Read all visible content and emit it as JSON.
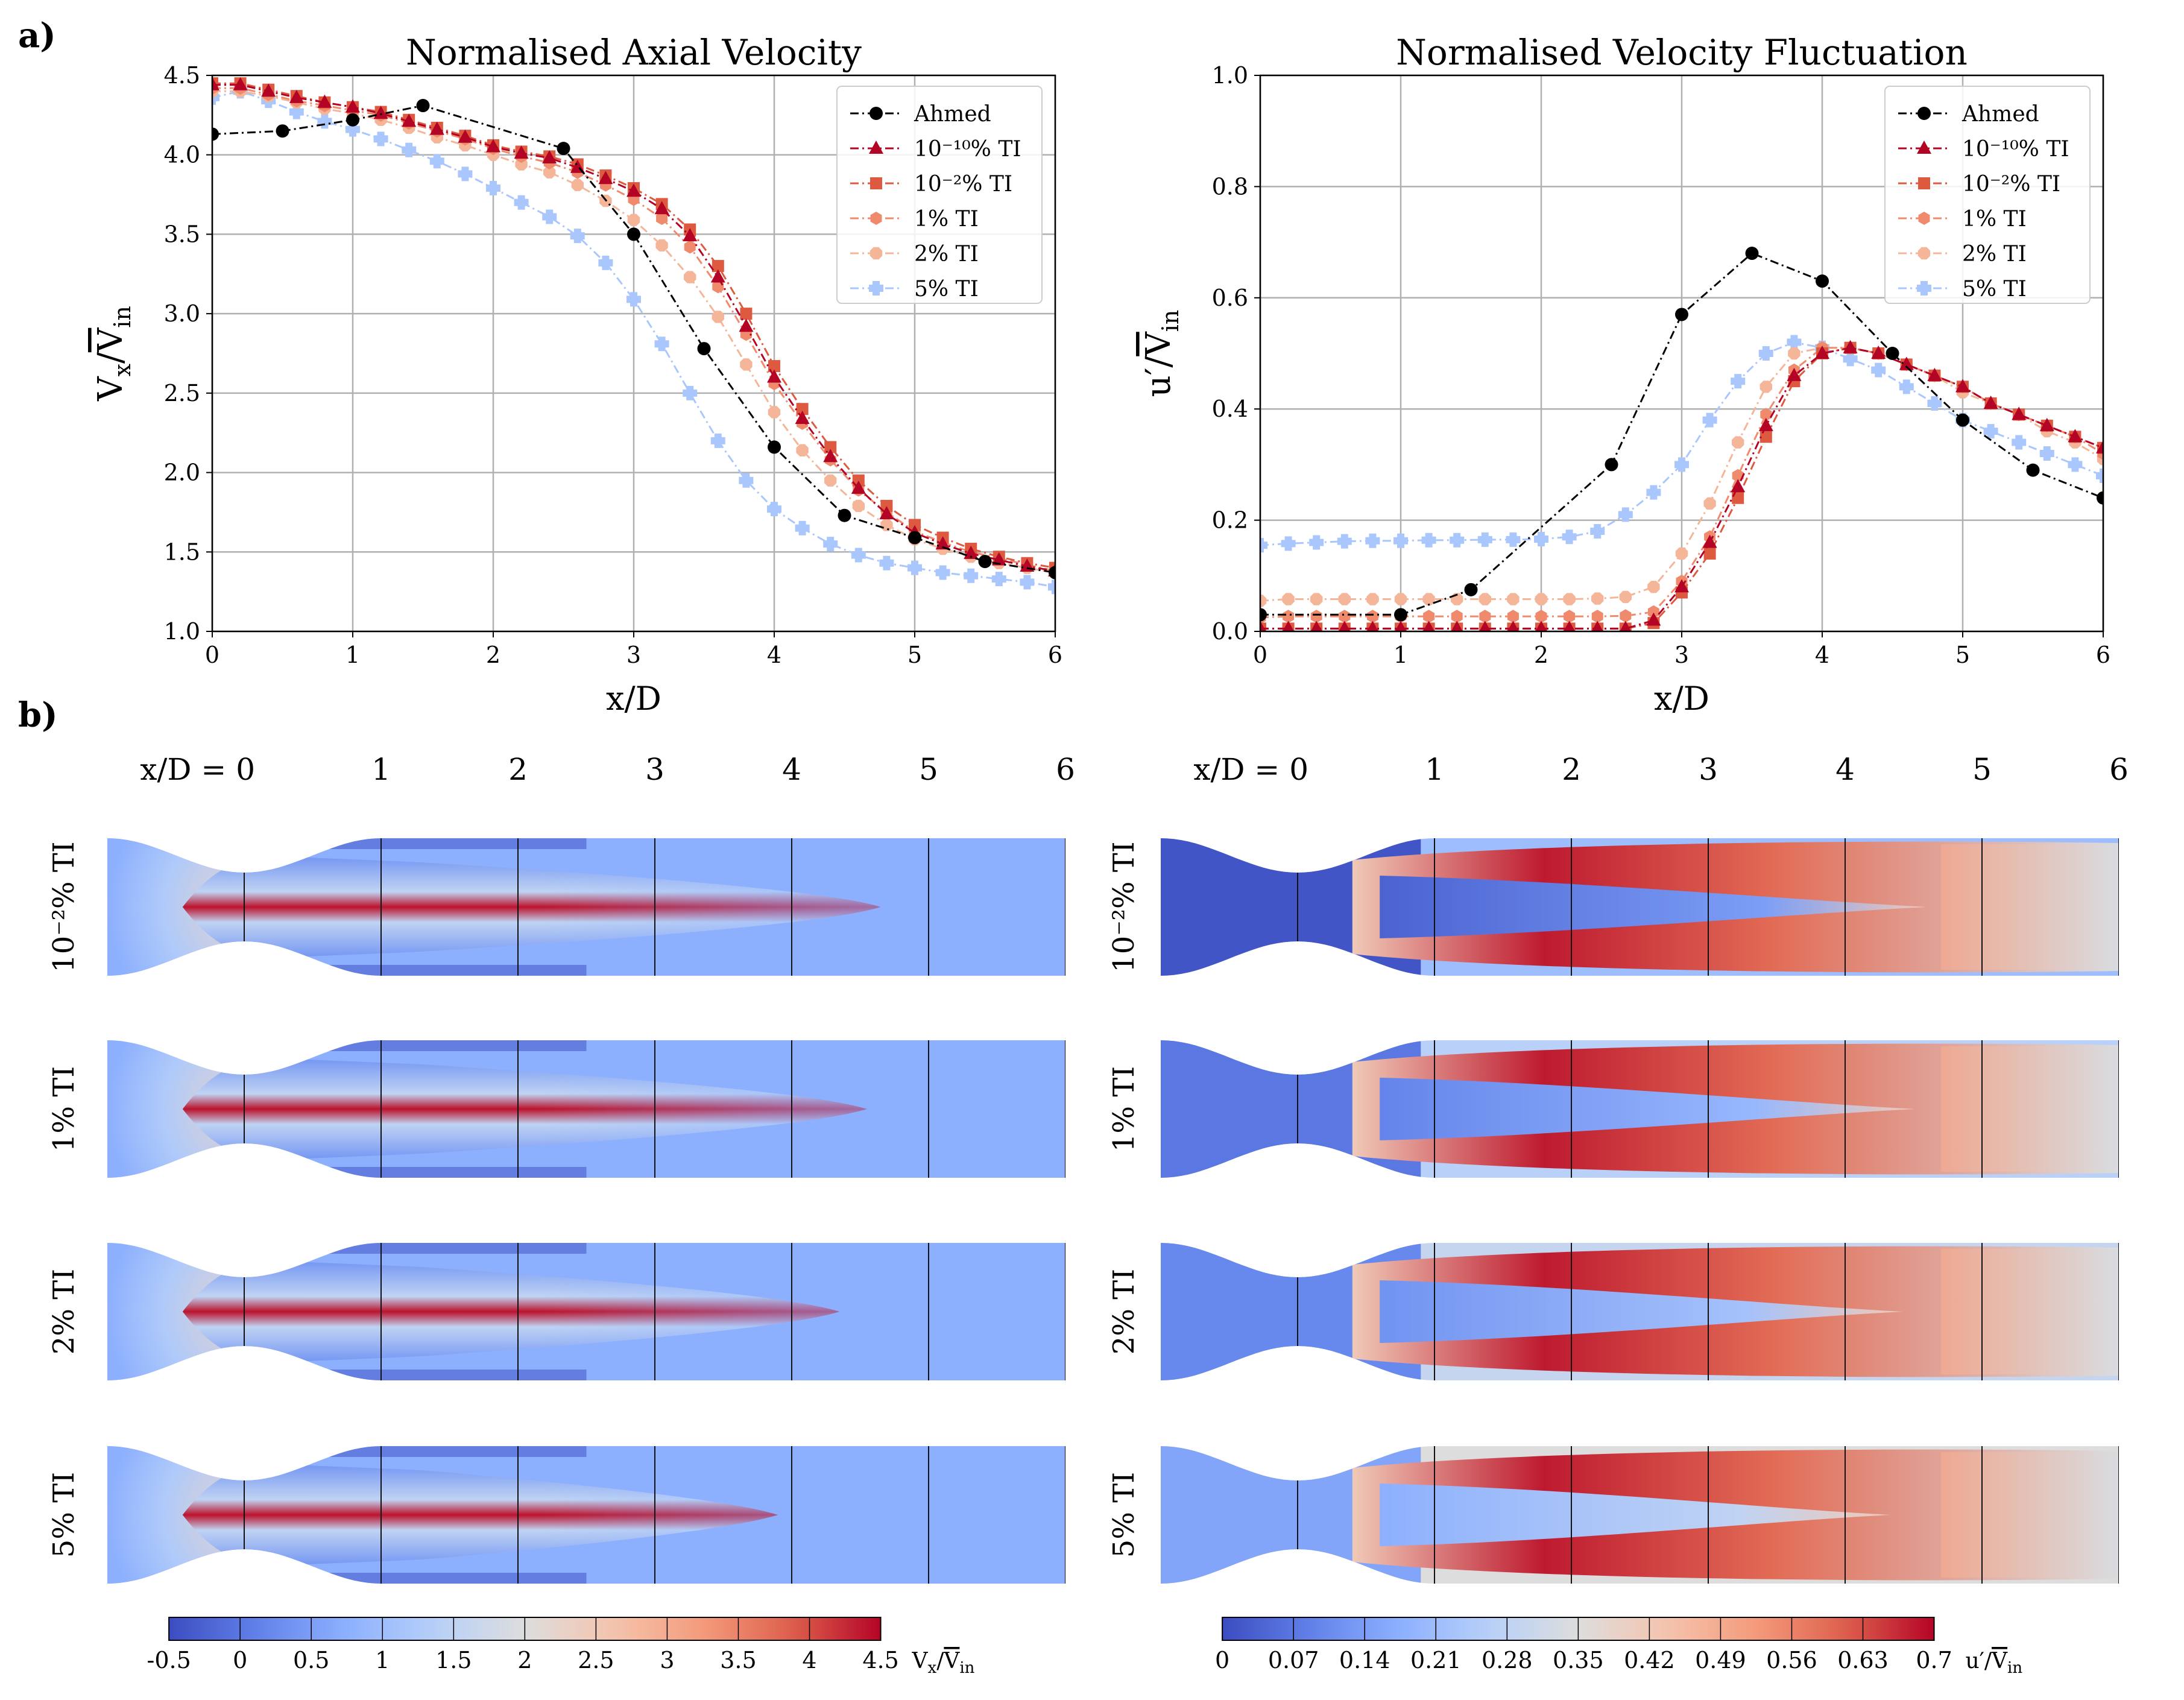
{
  "figure": {
    "panel_a": "a)",
    "panel_b": "b)"
  },
  "colors": {
    "ahmed": "#000000",
    "ti_1e10": "#b40426",
    "ti_1e2": "#dd5a41",
    "ti_1": "#f08a6c",
    "ti_2": "#f5b598",
    "ti_5": "#aac7fd",
    "grid": "#b0b0b0",
    "cool": "#3b4cc0",
    "neutral": "#dddddd",
    "warm": "#b40426"
  },
  "chart_data": [
    {
      "type": "line",
      "title": "Normalised Axial Velocity",
      "xlabel": "x/D",
      "ylabel": "Vx/V̄in",
      "ylabel_main": "V",
      "ylabel_sub1": "x",
      "ylabel_bar": "V",
      "ylabel_sub2": "in",
      "xlim": [
        0,
        6
      ],
      "ylim": [
        1.0,
        4.5
      ],
      "xticks": [
        "0",
        "1",
        "2",
        "3",
        "4",
        "5",
        "6"
      ],
      "yticks": [
        "1.0",
        "1.5",
        "2.0",
        "2.5",
        "3.0",
        "3.5",
        "4.0",
        "4.5"
      ],
      "grid": true,
      "legend_position": "top-right",
      "series": [
        {
          "name": "Ahmed",
          "style": "ahmed",
          "marker": "circle",
          "x": [
            0,
            0.5,
            1,
            1.5,
            2.5,
            3,
            3.5,
            4,
            4.5,
            5,
            5.5,
            6
          ],
          "y": [
            4.13,
            4.15,
            4.22,
            4.31,
            4.04,
            3.5,
            2.78,
            2.16,
            1.73,
            1.59,
            1.44,
            1.37
          ]
        },
        {
          "name": "10⁻¹⁰% TI",
          "style": "ti_1e10",
          "marker": "triangle",
          "x": [
            0,
            0.2,
            0.4,
            0.6,
            0.8,
            1.0,
            1.2,
            1.4,
            1.6,
            1.8,
            2.0,
            2.2,
            2.4,
            2.6,
            2.8,
            3.0,
            3.2,
            3.4,
            3.6,
            3.8,
            4.0,
            4.2,
            4.4,
            4.6,
            4.8,
            5.0,
            5.2,
            5.4,
            5.6,
            5.8,
            6.0
          ],
          "y": [
            4.44,
            4.44,
            4.4,
            4.36,
            4.33,
            4.3,
            4.26,
            4.21,
            4.16,
            4.11,
            4.05,
            4.01,
            3.98,
            3.92,
            3.85,
            3.77,
            3.66,
            3.49,
            3.23,
            2.92,
            2.6,
            2.34,
            2.1,
            1.9,
            1.74,
            1.62,
            1.55,
            1.49,
            1.45,
            1.41,
            1.38
          ]
        },
        {
          "name": "10⁻²% TI",
          "style": "ti_1e2",
          "marker": "square",
          "x": [
            0,
            0.2,
            0.4,
            0.6,
            0.8,
            1.0,
            1.2,
            1.4,
            1.6,
            1.8,
            2.0,
            2.2,
            2.4,
            2.6,
            2.8,
            3.0,
            3.2,
            3.4,
            3.6,
            3.8,
            4.0,
            4.2,
            4.4,
            4.6,
            4.8,
            5.0,
            5.2,
            5.4,
            5.6,
            5.8,
            6.0
          ],
          "y": [
            4.45,
            4.45,
            4.41,
            4.37,
            4.33,
            4.3,
            4.27,
            4.22,
            4.17,
            4.12,
            4.06,
            4.02,
            3.99,
            3.94,
            3.87,
            3.79,
            3.69,
            3.53,
            3.3,
            3.0,
            2.67,
            2.4,
            2.16,
            1.95,
            1.79,
            1.67,
            1.59,
            1.52,
            1.47,
            1.43,
            1.4
          ]
        },
        {
          "name": "1% TI",
          "style": "ti_1",
          "marker": "hexagon",
          "x": [
            0,
            0.2,
            0.4,
            0.6,
            0.8,
            1.0,
            1.2,
            1.4,
            1.6,
            1.8,
            2.0,
            2.2,
            2.4,
            2.6,
            2.8,
            3.0,
            3.2,
            3.4,
            3.6,
            3.8,
            4.0,
            4.2,
            4.4,
            4.6,
            4.8,
            5.0,
            5.2,
            5.4,
            5.6,
            5.8,
            6.0
          ],
          "y": [
            4.42,
            4.42,
            4.38,
            4.34,
            4.31,
            4.28,
            4.25,
            4.2,
            4.15,
            4.1,
            4.04,
            3.99,
            3.95,
            3.89,
            3.81,
            3.72,
            3.6,
            3.42,
            3.17,
            2.87,
            2.56,
            2.31,
            2.08,
            1.89,
            1.75,
            1.63,
            1.56,
            1.5,
            1.46,
            1.42,
            1.38
          ]
        },
        {
          "name": "2% TI",
          "style": "ti_2",
          "marker": "octagon",
          "x": [
            0,
            0.2,
            0.4,
            0.6,
            0.8,
            1.0,
            1.2,
            1.4,
            1.6,
            1.8,
            2.0,
            2.2,
            2.4,
            2.6,
            2.8,
            3.0,
            3.2,
            3.4,
            3.6,
            3.8,
            4.0,
            4.2,
            4.4,
            4.6,
            4.8,
            5.0,
            5.2,
            5.4,
            5.6,
            5.8,
            6.0
          ],
          "y": [
            4.4,
            4.4,
            4.37,
            4.33,
            4.29,
            4.26,
            4.22,
            4.17,
            4.11,
            4.06,
            4.0,
            3.94,
            3.89,
            3.81,
            3.71,
            3.59,
            3.43,
            3.23,
            2.98,
            2.68,
            2.38,
            2.14,
            1.95,
            1.79,
            1.67,
            1.58,
            1.52,
            1.47,
            1.43,
            1.4,
            1.37
          ]
        },
        {
          "name": "5% TI",
          "style": "ti_5",
          "marker": "plus",
          "x": [
            0,
            0.2,
            0.4,
            0.6,
            0.8,
            1.0,
            1.2,
            1.4,
            1.6,
            1.8,
            2.0,
            2.2,
            2.4,
            2.6,
            2.8,
            3.0,
            3.2,
            3.4,
            3.6,
            3.8,
            4.0,
            4.2,
            4.4,
            4.6,
            4.8,
            5.0,
            5.2,
            5.4,
            5.6,
            5.8,
            6.0
          ],
          "y": [
            4.36,
            4.4,
            4.34,
            4.27,
            4.21,
            4.16,
            4.1,
            4.03,
            3.96,
            3.88,
            3.79,
            3.7,
            3.61,
            3.49,
            3.32,
            3.09,
            2.81,
            2.5,
            2.2,
            1.95,
            1.77,
            1.65,
            1.55,
            1.48,
            1.43,
            1.4,
            1.37,
            1.35,
            1.33,
            1.31,
            1.28
          ]
        }
      ]
    },
    {
      "type": "line",
      "title": "Normalised Velocity Fluctuation",
      "xlabel": "x/D",
      "ylabel": "u′/V̄in",
      "ylabel_main": "u′",
      "ylabel_sub1": "",
      "ylabel_bar": "V",
      "ylabel_sub2": "in",
      "xlim": [
        0,
        6
      ],
      "ylim": [
        0.0,
        1.0
      ],
      "xticks": [
        "0",
        "1",
        "2",
        "3",
        "4",
        "5",
        "6"
      ],
      "yticks": [
        "0.0",
        "0.2",
        "0.4",
        "0.6",
        "0.8",
        "1.0"
      ],
      "grid": true,
      "legend_position": "top-right",
      "series": [
        {
          "name": "Ahmed",
          "style": "ahmed",
          "marker": "circle",
          "x": [
            0,
            1,
            1.5,
            2.5,
            3,
            3.5,
            4,
            4.5,
            5,
            5.5,
            6
          ],
          "y": [
            0.03,
            0.03,
            0.075,
            0.3,
            0.57,
            0.68,
            0.63,
            0.5,
            0.38,
            0.29,
            0.24
          ]
        },
        {
          "name": "10⁻¹⁰% TI",
          "style": "ti_1e10",
          "marker": "triangle",
          "x": [
            0,
            0.2,
            0.4,
            0.6,
            0.8,
            1.0,
            1.2,
            1.4,
            1.6,
            1.8,
            2.0,
            2.2,
            2.4,
            2.6,
            2.8,
            3.0,
            3.2,
            3.4,
            3.6,
            3.8,
            4.0,
            4.2,
            4.4,
            4.6,
            4.8,
            5.0,
            5.2,
            5.4,
            5.6,
            5.8,
            6.0
          ],
          "y": [
            0.005,
            0.005,
            0.005,
            0.005,
            0.005,
            0.005,
            0.005,
            0.005,
            0.005,
            0.005,
            0.005,
            0.005,
            0.005,
            0.005,
            0.02,
            0.08,
            0.16,
            0.26,
            0.37,
            0.46,
            0.5,
            0.51,
            0.5,
            0.48,
            0.46,
            0.44,
            0.41,
            0.39,
            0.37,
            0.35,
            0.33
          ]
        },
        {
          "name": "10⁻²% TI",
          "style": "ti_1e2",
          "marker": "square",
          "x": [
            0,
            0.2,
            0.4,
            0.6,
            0.8,
            1.0,
            1.2,
            1.4,
            1.6,
            1.8,
            2.0,
            2.2,
            2.4,
            2.6,
            2.8,
            3.0,
            3.2,
            3.4,
            3.6,
            3.8,
            4.0,
            4.2,
            4.4,
            4.6,
            4.8,
            5.0,
            5.2,
            5.4,
            5.6,
            5.8,
            6.0
          ],
          "y": [
            0.005,
            0.005,
            0.005,
            0.005,
            0.005,
            0.005,
            0.005,
            0.005,
            0.005,
            0.005,
            0.005,
            0.005,
            0.005,
            0.005,
            0.015,
            0.07,
            0.14,
            0.24,
            0.35,
            0.45,
            0.5,
            0.51,
            0.5,
            0.48,
            0.46,
            0.44,
            0.41,
            0.39,
            0.37,
            0.35,
            0.33
          ]
        },
        {
          "name": "1% TI",
          "style": "ti_1",
          "marker": "hexagon",
          "x": [
            0,
            0.2,
            0.4,
            0.6,
            0.8,
            1.0,
            1.2,
            1.4,
            1.6,
            1.8,
            2.0,
            2.2,
            2.4,
            2.6,
            2.8,
            3.0,
            3.2,
            3.4,
            3.6,
            3.8,
            4.0,
            4.2,
            4.4,
            4.6,
            4.8,
            5.0,
            5.2,
            5.4,
            5.6,
            5.8,
            6.0
          ],
          "y": [
            0.025,
            0.027,
            0.027,
            0.027,
            0.027,
            0.027,
            0.027,
            0.027,
            0.027,
            0.027,
            0.027,
            0.027,
            0.027,
            0.028,
            0.035,
            0.09,
            0.17,
            0.28,
            0.39,
            0.47,
            0.51,
            0.51,
            0.5,
            0.48,
            0.46,
            0.44,
            0.41,
            0.39,
            0.37,
            0.35,
            0.32
          ]
        },
        {
          "name": "2% TI",
          "style": "ti_2",
          "marker": "octagon",
          "x": [
            0,
            0.2,
            0.4,
            0.6,
            0.8,
            1.0,
            1.2,
            1.4,
            1.6,
            1.8,
            2.0,
            2.2,
            2.4,
            2.6,
            2.8,
            3.0,
            3.2,
            3.4,
            3.6,
            3.8,
            4.0,
            4.2,
            4.4,
            4.6,
            4.8,
            5.0,
            5.2,
            5.4,
            5.6,
            5.8,
            6.0
          ],
          "y": [
            0.055,
            0.058,
            0.058,
            0.058,
            0.058,
            0.058,
            0.058,
            0.058,
            0.058,
            0.058,
            0.058,
            0.058,
            0.059,
            0.062,
            0.08,
            0.14,
            0.23,
            0.34,
            0.44,
            0.5,
            0.51,
            0.51,
            0.5,
            0.48,
            0.46,
            0.43,
            0.41,
            0.39,
            0.36,
            0.34,
            0.31
          ]
        },
        {
          "name": "5% TI",
          "style": "ti_5",
          "marker": "plus",
          "x": [
            0,
            0.2,
            0.4,
            0.6,
            0.8,
            1.0,
            1.2,
            1.4,
            1.6,
            1.8,
            2.0,
            2.2,
            2.4,
            2.6,
            2.8,
            3.0,
            3.2,
            3.4,
            3.6,
            3.8,
            4.0,
            4.2,
            4.4,
            4.6,
            4.8,
            5.0,
            5.2,
            5.4,
            5.6,
            5.8,
            6.0
          ],
          "y": [
            0.155,
            0.158,
            0.16,
            0.162,
            0.163,
            0.163,
            0.164,
            0.164,
            0.165,
            0.165,
            0.166,
            0.17,
            0.18,
            0.21,
            0.25,
            0.3,
            0.38,
            0.45,
            0.5,
            0.52,
            0.51,
            0.49,
            0.47,
            0.44,
            0.41,
            0.38,
            0.36,
            0.34,
            0.32,
            0.3,
            0.28
          ]
        }
      ]
    },
    {
      "type": "heatmap",
      "field": "axial velocity",
      "column_label_prefix": "x/D = ",
      "column_labels": [
        "0",
        "1",
        "2",
        "3",
        "4",
        "5",
        "6"
      ],
      "row_labels": [
        "10⁻²% TI",
        "1% TI",
        "2% TI",
        "5% TI"
      ],
      "core_lengths_xD": [
        4.65,
        4.55,
        4.35,
        3.9
      ],
      "colorbar": {
        "label_main": "V",
        "label_sub1": "x",
        "label_bar": "V",
        "label_sub2": "in",
        "ticks": [
          "-0.5",
          "0",
          "0.5",
          "1",
          "1.5",
          "2",
          "2.5",
          "3",
          "3.5",
          "4",
          "4.5"
        ],
        "range": [
          -0.5,
          4.5
        ]
      }
    },
    {
      "type": "heatmap",
      "field": "velocity fluctuation",
      "column_label_prefix": "x/D = ",
      "column_labels": [
        "0",
        "1",
        "2",
        "3",
        "4",
        "5",
        "6"
      ],
      "row_labels": [
        "10⁻²% TI",
        "1% TI",
        "2% TI",
        "5% TI"
      ],
      "colorbar": {
        "label_main": "u′",
        "label_sub1": "",
        "label_bar": "V",
        "label_sub2": "in",
        "ticks": [
          "0",
          "0.07",
          "0.14",
          "0.21",
          "0.28",
          "0.35",
          "0.42",
          "0.49",
          "0.56",
          "0.63",
          "0.7"
        ],
        "range": [
          0,
          0.7
        ]
      }
    }
  ]
}
